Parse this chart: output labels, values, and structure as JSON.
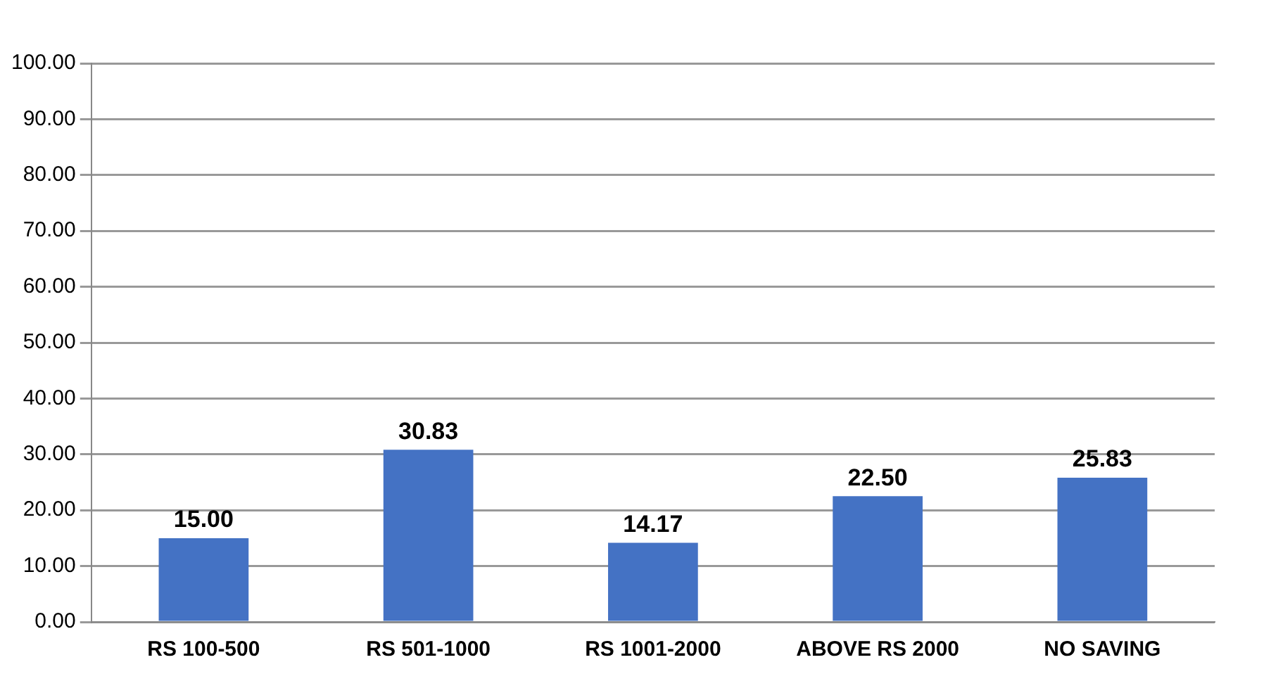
{
  "chart_data": {
    "type": "bar",
    "categories": [
      "RS 100-500",
      "RS 501-1000",
      "RS 1001-2000",
      "ABOVE RS 2000",
      "NO SAVING"
    ],
    "values": [
      15.0,
      30.83,
      14.17,
      22.5,
      25.83
    ],
    "value_labels": [
      "15.00",
      "30.83",
      "14.17",
      "22.50",
      "25.83"
    ],
    "color": "#4472c4",
    "ylim": [
      0,
      100
    ],
    "yticks": [
      {
        "value": 0,
        "label": "0.00"
      },
      {
        "value": 10,
        "label": "10.00"
      },
      {
        "value": 20,
        "label": "20.00"
      },
      {
        "value": 30,
        "label": "30.00"
      },
      {
        "value": 40,
        "label": "40.00"
      },
      {
        "value": 50,
        "label": "50.00"
      },
      {
        "value": 60,
        "label": "60.00"
      },
      {
        "value": 70,
        "label": "70.00"
      },
      {
        "value": 80,
        "label": "80.00"
      },
      {
        "value": 90,
        "label": "90.00"
      },
      {
        "value": 100,
        "label": "100.00"
      }
    ],
    "grid": "y",
    "legend": false
  }
}
